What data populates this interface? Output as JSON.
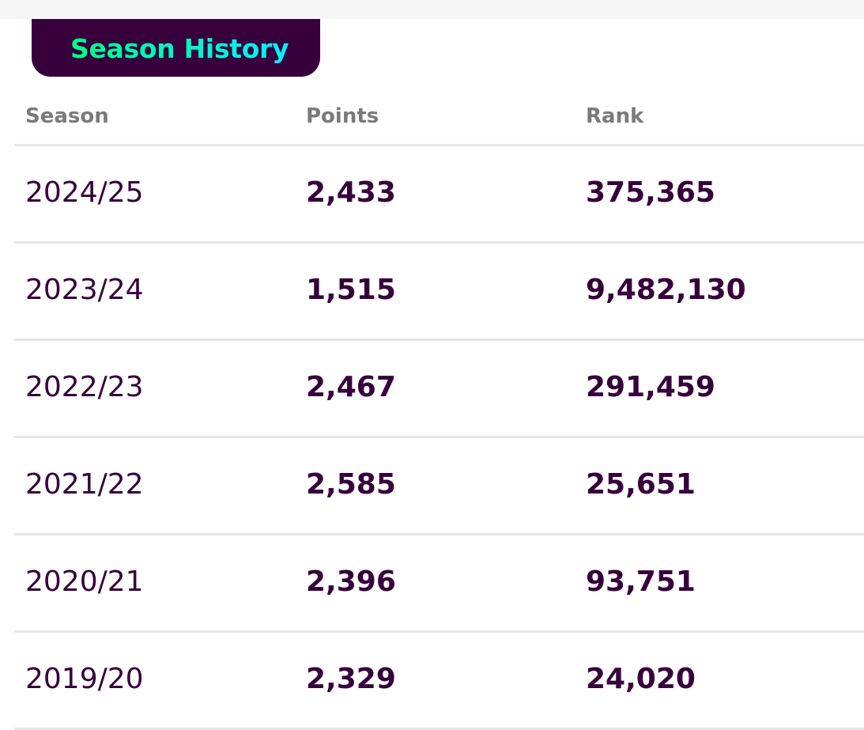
{
  "section": {
    "title": "Season History",
    "tab_color": "#37003c",
    "gradient_start": "#00ff87",
    "gradient_end": "#05f0ff"
  },
  "table": {
    "headers": {
      "season": "Season",
      "points": "Points",
      "rank": "Rank"
    },
    "rows": [
      {
        "season": "2024/25",
        "points": "2,433",
        "rank": "375,365"
      },
      {
        "season": "2023/24",
        "points": "1,515",
        "rank": "9,482,130"
      },
      {
        "season": "2022/23",
        "points": "2,467",
        "rank": "291,459"
      },
      {
        "season": "2021/22",
        "points": "2,585",
        "rank": "25,651"
      },
      {
        "season": "2020/21",
        "points": "2,396",
        "rank": "93,751"
      },
      {
        "season": "2019/20",
        "points": "2,329",
        "rank": "24,020"
      }
    ]
  }
}
